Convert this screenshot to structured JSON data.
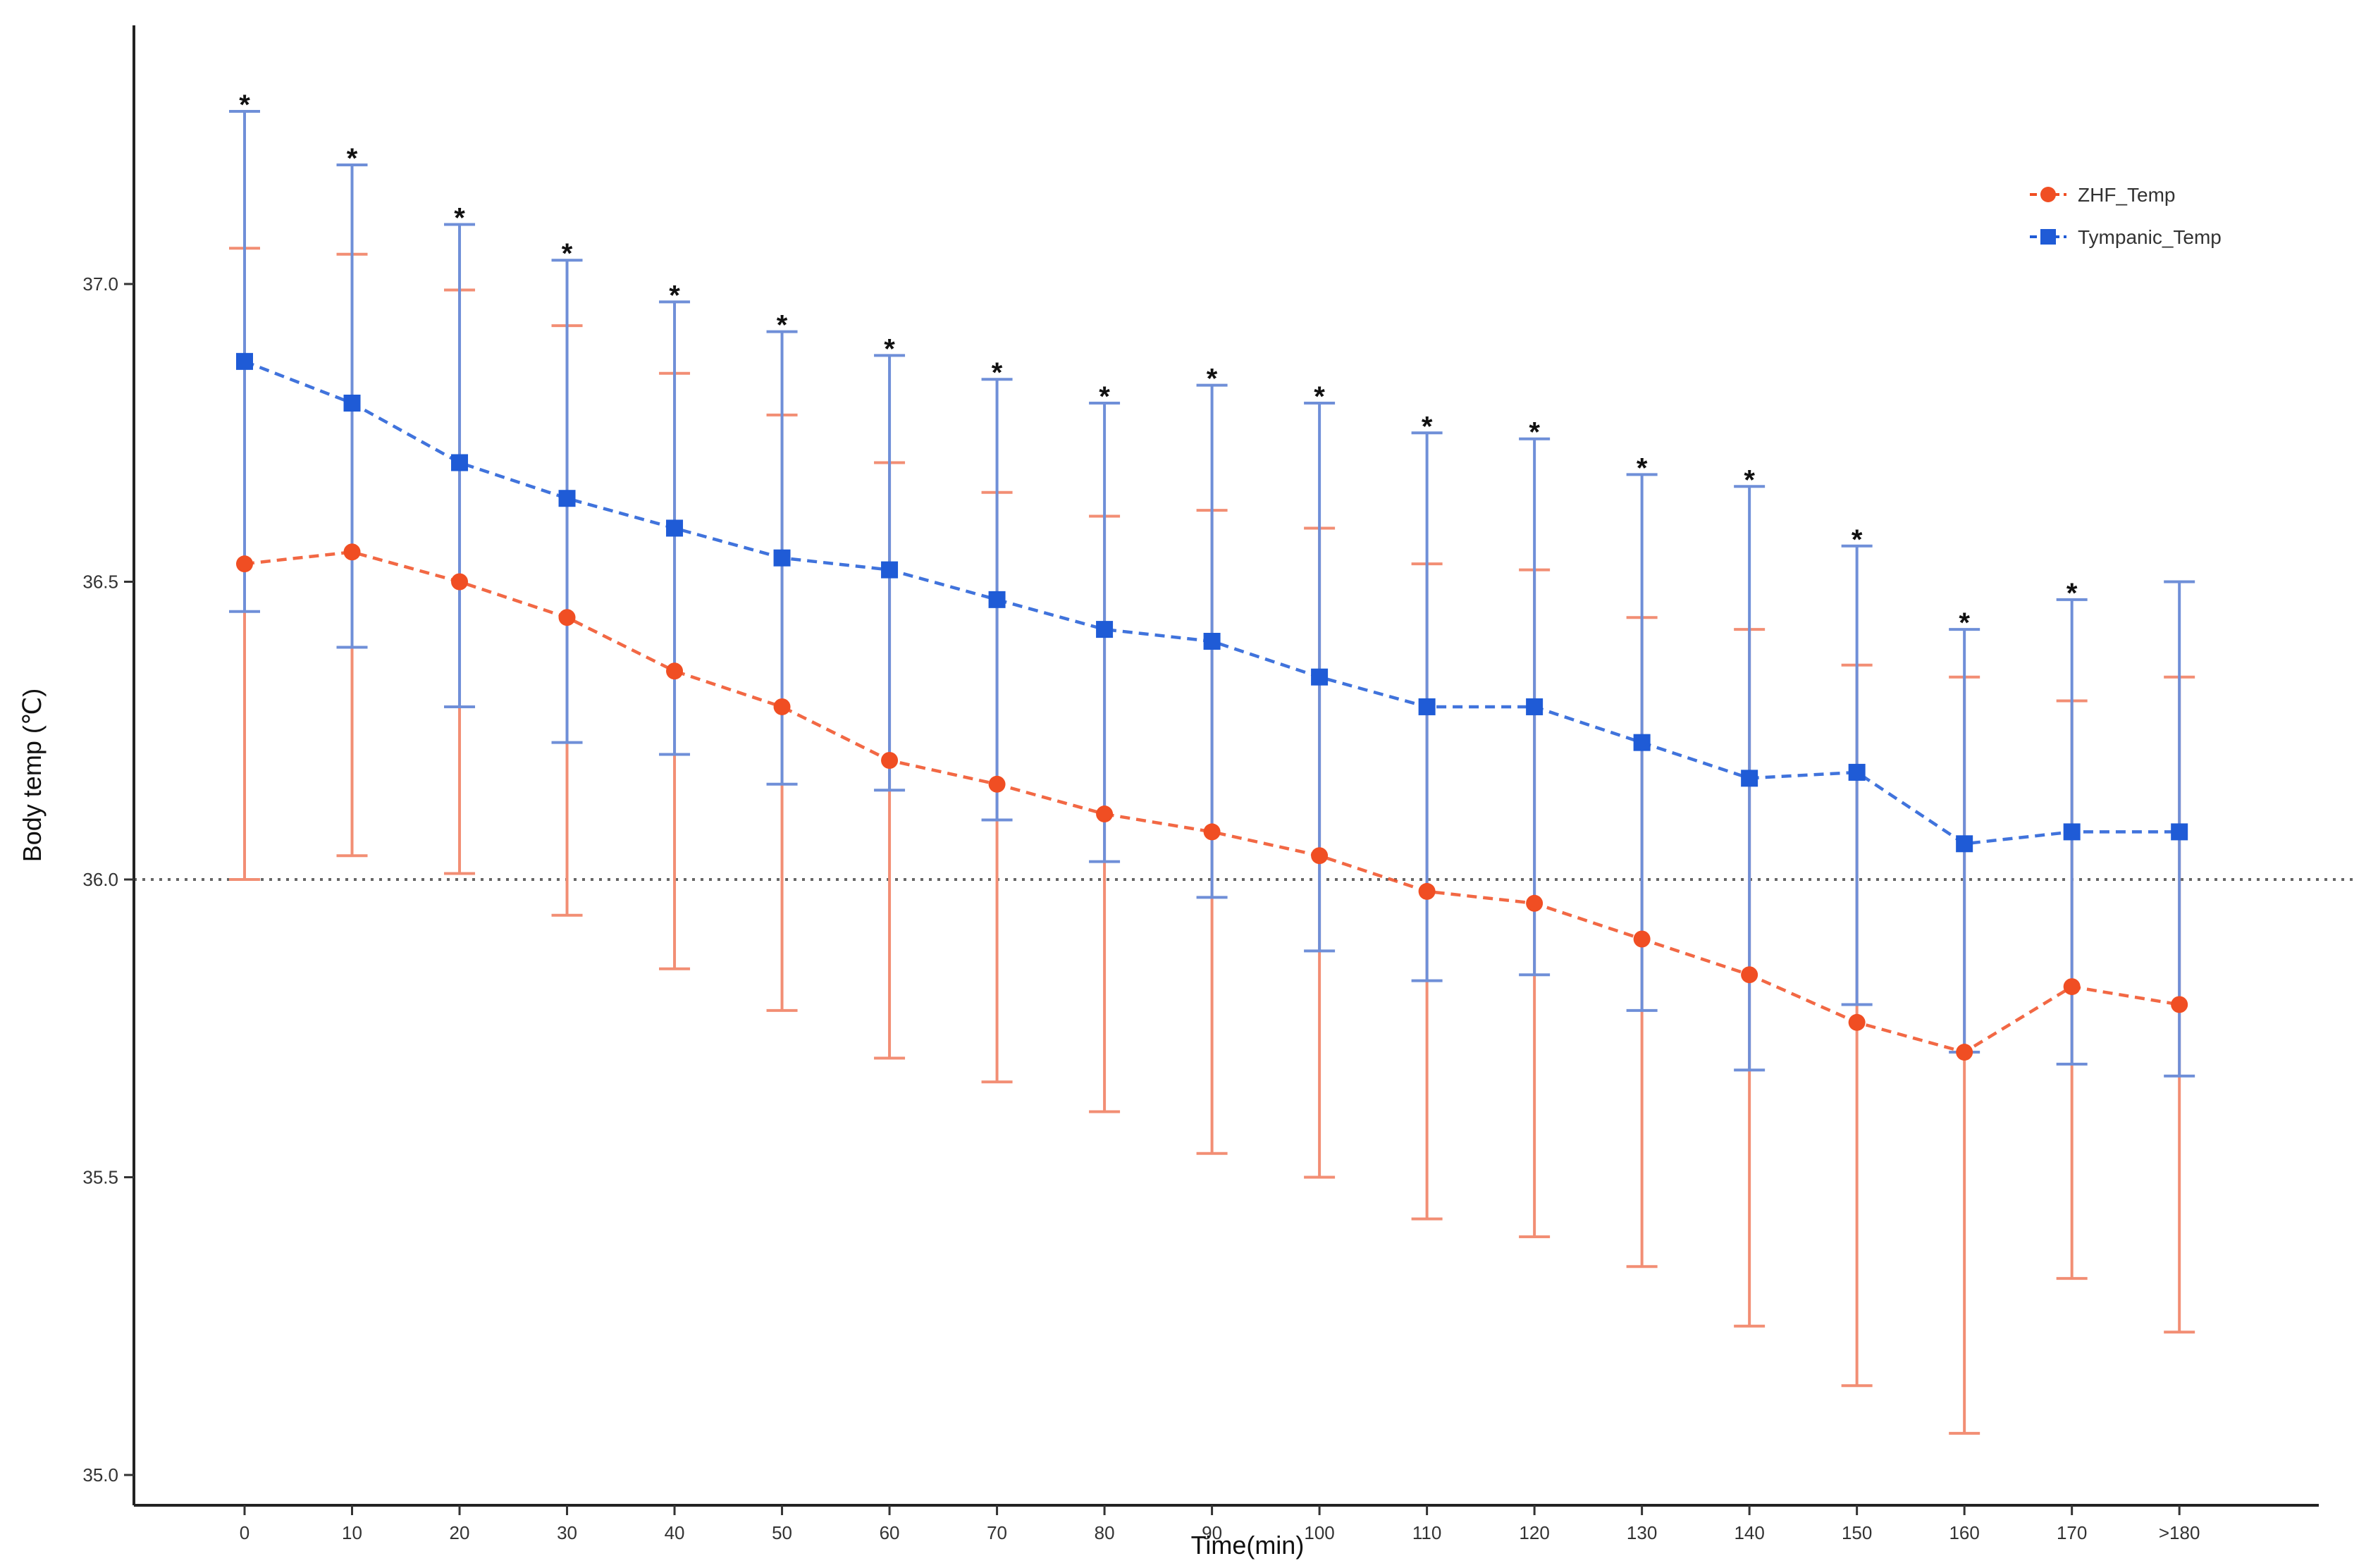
{
  "chart_data": {
    "type": "line",
    "title": "",
    "xlabel": "Time(min)",
    "ylabel": "Body temp (℃)",
    "categories": [
      "0",
      "10",
      "20",
      "30",
      "40",
      "50",
      "60",
      "70",
      "80",
      "90",
      "100",
      "110",
      "120",
      "130",
      "140",
      "150",
      "160",
      "170",
      ">180"
    ],
    "ylim": [
      35.0,
      37.5
    ],
    "yticks": [
      "35.0",
      "35.5",
      "36.0",
      "36.5",
      "37.0"
    ],
    "reference_line": 36.0,
    "grid": false,
    "legend_position": "top-right",
    "significance_mark": "*",
    "significant": [
      true,
      true,
      true,
      true,
      true,
      true,
      true,
      true,
      true,
      true,
      true,
      true,
      true,
      true,
      true,
      true,
      true,
      true,
      false
    ],
    "series": [
      {
        "name": "ZHF_Temp",
        "color": "#f04e23",
        "errorbar_color": "#f28e74",
        "marker": "circle",
        "values": [
          36.53,
          36.55,
          36.5,
          36.44,
          36.35,
          36.29,
          36.2,
          36.16,
          36.11,
          36.08,
          36.04,
          35.98,
          35.96,
          35.9,
          35.84,
          35.76,
          35.71,
          35.82,
          35.79
        ],
        "upper": [
          37.06,
          37.05,
          36.99,
          36.93,
          36.85,
          36.78,
          36.7,
          36.65,
          36.61,
          36.62,
          36.59,
          36.53,
          36.52,
          36.44,
          36.42,
          36.36,
          36.34,
          36.3,
          36.34
        ],
        "lower": [
          36.0,
          36.04,
          36.01,
          35.94,
          35.85,
          35.78,
          35.7,
          35.66,
          35.61,
          35.54,
          35.5,
          35.43,
          35.4,
          35.35,
          35.25,
          35.15,
          35.07,
          35.33,
          35.24
        ]
      },
      {
        "name": "Tympanic_Temp",
        "color": "#1f5bd6",
        "errorbar_color": "#6f8fd8",
        "marker": "square",
        "values": [
          36.87,
          36.8,
          36.7,
          36.64,
          36.59,
          36.54,
          36.52,
          36.47,
          36.42,
          36.4,
          36.34,
          36.29,
          36.29,
          36.23,
          36.17,
          36.18,
          36.06,
          36.08,
          36.08
        ],
        "upper": [
          37.29,
          37.2,
          37.1,
          37.04,
          36.97,
          36.92,
          36.88,
          36.84,
          36.8,
          36.83,
          36.8,
          36.75,
          36.74,
          36.68,
          36.66,
          36.56,
          36.42,
          36.47,
          36.5
        ],
        "lower": [
          36.45,
          36.39,
          36.29,
          36.23,
          36.21,
          36.16,
          36.15,
          36.1,
          36.03,
          35.97,
          35.88,
          35.83,
          35.84,
          35.78,
          35.68,
          35.79,
          35.71,
          35.69,
          35.67
        ]
      }
    ]
  }
}
